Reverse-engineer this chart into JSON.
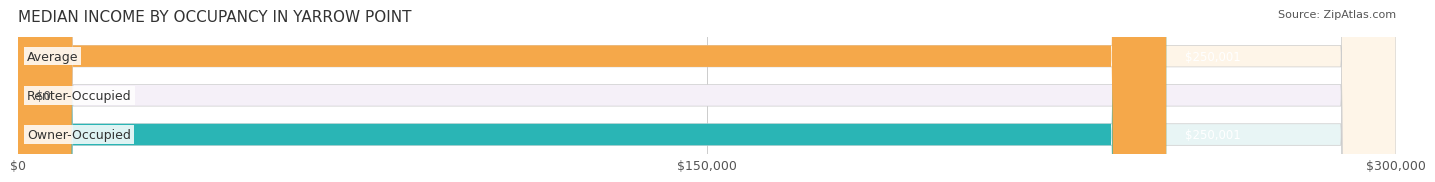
{
  "title": "MEDIAN INCOME BY OCCUPANCY IN YARROW POINT",
  "source": "Source: ZipAtlas.com",
  "categories": [
    "Owner-Occupied",
    "Renter-Occupied",
    "Average"
  ],
  "values": [
    250001,
    0,
    250001
  ],
  "bar_colors": [
    "#2ab5b5",
    "#c8a8d8",
    "#f5a84a"
  ],
  "bar_bg_colors": [
    "#e8f5f5",
    "#f5f0f8",
    "#fef5e8"
  ],
  "value_labels": [
    "$250,001",
    "$0",
    "$250,001"
  ],
  "xlim": [
    0,
    300000
  ],
  "xticks": [
    0,
    150000,
    300000
  ],
  "xtick_labels": [
    "$0",
    "$150,000",
    "$300,000"
  ],
  "bar_height": 0.55,
  "label_fontsize": 9,
  "title_fontsize": 11,
  "value_fontsize": 8.5,
  "source_fontsize": 8,
  "background_color": "#ffffff"
}
